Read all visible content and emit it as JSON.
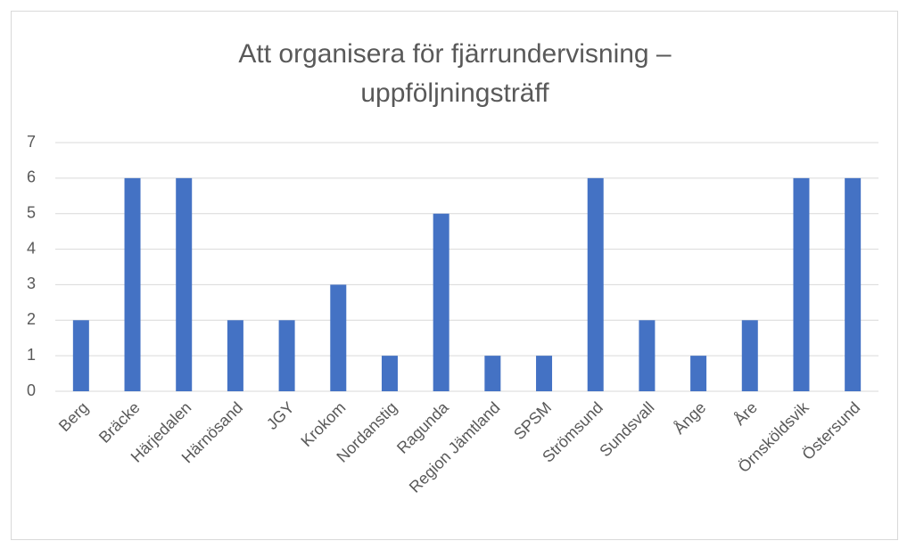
{
  "chart_data": {
    "type": "bar",
    "title": [
      "Att organisera för fjärrundervisning –",
      "uppföljningsträff"
    ],
    "categories": [
      "Berg",
      "Bräcke",
      "Härjedalen",
      "Härnösand",
      "JGY",
      "Krokom",
      "Nordanstig",
      "Ragunda",
      "Region Jämtland",
      "SPSM",
      "Strömsund",
      "Sundsvall",
      "Ånge",
      "Åre",
      "Örnsköldsvik",
      "Östersund"
    ],
    "values": [
      2,
      6,
      6,
      2,
      2,
      3,
      1,
      5,
      1,
      1,
      6,
      2,
      1,
      2,
      6,
      6
    ],
    "color": "#4472c4",
    "ylim": [
      0,
      7
    ],
    "yticks": [
      0,
      1,
      2,
      3,
      4,
      5,
      6,
      7
    ],
    "grid": true
  }
}
